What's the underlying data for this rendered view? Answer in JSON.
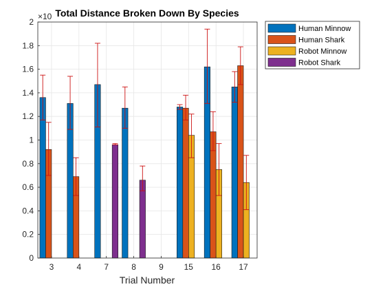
{
  "chart_data": {
    "type": "bar",
    "title": "Total Distance Broken Down By Species",
    "xlabel": "Trial Number",
    "ylabel": "",
    "exponent_label": "×10",
    "categories": [
      "3",
      "4",
      "7",
      "8",
      "9",
      "15",
      "16",
      "17"
    ],
    "ylim": [
      0,
      2
    ],
    "yticks": [
      0,
      0.2,
      0.4,
      0.6,
      0.8,
      1,
      1.2,
      1.4,
      1.6,
      1.8,
      2
    ],
    "ytick_labels": [
      "0",
      "0.2",
      "0.4",
      "0.6",
      "0.8",
      "1",
      "1.2",
      "1.4",
      "1.6",
      "1.8",
      "2"
    ],
    "grid": true,
    "legend_position": "outside-top-right",
    "series": [
      {
        "name": "Human Minnow",
        "color": "#0072BD",
        "values": [
          1.36,
          1.31,
          1.47,
          1.27,
          0,
          1.28,
          1.62,
          1.45
        ],
        "err_low": [
          1.17,
          1.09,
          1.11,
          1.1,
          0,
          1.26,
          1.31,
          1.32
        ],
        "err_high": [
          1.55,
          1.54,
          1.82,
          1.45,
          0,
          1.3,
          1.94,
          1.58
        ]
      },
      {
        "name": "Human Shark",
        "color": "#D95319",
        "values": [
          0.92,
          0.69,
          0,
          0,
          0,
          1.27,
          1.07,
          1.63
        ],
        "err_low": [
          0.7,
          0.53,
          0,
          0,
          0,
          1.17,
          0.91,
          1.47
        ],
        "err_high": [
          1.15,
          0.85,
          0,
          0,
          0,
          1.38,
          1.24,
          1.79
        ]
      },
      {
        "name": "Robot Minnow",
        "color": "#EDB120",
        "values": [
          0,
          0,
          0,
          0,
          0,
          1.04,
          0.75,
          0.64
        ],
        "err_low": [
          0,
          0,
          0,
          0,
          0,
          0.85,
          0.53,
          0.41
        ],
        "err_high": [
          0,
          0,
          0,
          0,
          0,
          1.22,
          0.97,
          0.87
        ]
      },
      {
        "name": "Robot Shark",
        "color": "#7E2F8E",
        "values": [
          0,
          0,
          0.96,
          0.66,
          0,
          0,
          0,
          0
        ],
        "err_low": [
          0,
          0,
          0.96,
          0.57,
          0,
          0,
          0,
          0
        ],
        "err_high": [
          0,
          0,
          0.97,
          0.78,
          0,
          0,
          0,
          0
        ]
      }
    ],
    "errorbar_color": "#CC1111"
  }
}
